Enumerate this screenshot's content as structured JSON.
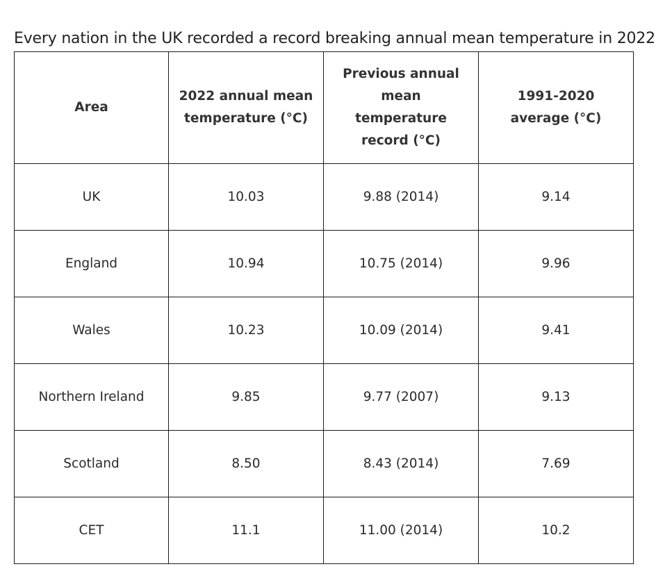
{
  "intro": "Every nation in the UK recorded a record breaking annual mean temperature in 2022:",
  "table": {
    "headers": [
      "Area",
      "2022 annual mean temperature (°C)",
      "Previous annual mean temperature record (°C)",
      "1991-2020 average (°C)"
    ],
    "rows": [
      [
        "UK",
        "10.03",
        "9.88 (2014)",
        "9.14"
      ],
      [
        "England",
        "10.94",
        "10.75 (2014)",
        "9.96"
      ],
      [
        "Wales",
        "10.23",
        "10.09 (2014)",
        "9.41"
      ],
      [
        "Northern Ireland",
        "9.85",
        "9.77 (2007)",
        "9.13"
      ],
      [
        "Scotland",
        "8.50",
        "8.43 (2014)",
        "7.69"
      ],
      [
        "CET",
        "11.1",
        "11.00 (2014)",
        "10.2"
      ]
    ]
  }
}
